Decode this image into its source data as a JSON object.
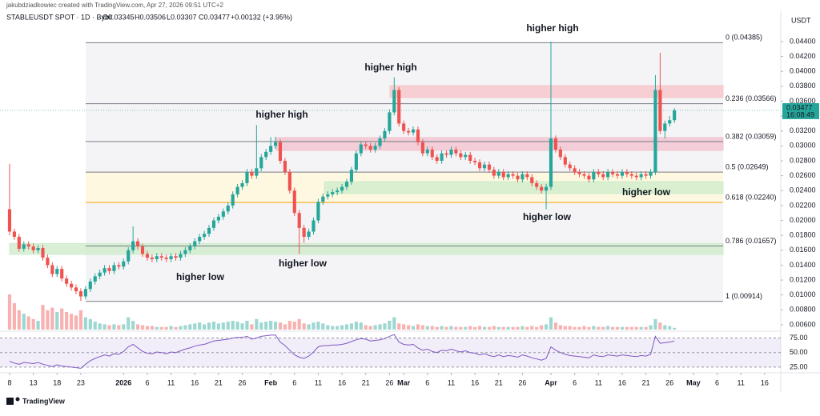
{
  "header": "jakubdziadkowiec created with TradingView.com, Apr 27, 2026 09:51 UTC+2",
  "symbol": "STABLEUSDT SPOT · 1D · Bybit",
  "ohlc": [
    "O0.03345",
    "H0.03506",
    "L0.03307",
    "C0.03477",
    "+0.00132 (+3.95%)"
  ],
  "currency": "USDT",
  "last_price": "0.03477",
  "countdown": "16:08:49",
  "logo": "TradingView",
  "chart_data": {
    "type": "candlestick",
    "up_color": "#26a69a",
    "down_color": "#ef5350",
    "xlim": [
      -2.02,
      162.4
    ],
    "xticks": [
      {
        "value": 0,
        "label": "8"
      },
      {
        "value": 5,
        "label": "13"
      },
      {
        "value": 10,
        "label": "18"
      },
      {
        "value": 15,
        "label": "23"
      },
      {
        "value": 24,
        "label": "2026"
      },
      {
        "value": 29,
        "label": "6"
      },
      {
        "value": 34,
        "label": "11"
      },
      {
        "value": 39,
        "label": "16"
      },
      {
        "value": 44,
        "label": "21"
      },
      {
        "value": 49,
        "label": "26"
      },
      {
        "value": 55,
        "label": "Feb"
      },
      {
        "value": 60,
        "label": "6"
      },
      {
        "value": 65,
        "label": "11"
      },
      {
        "value": 70,
        "label": "16"
      },
      {
        "value": 75,
        "label": "21"
      },
      {
        "value": 80,
        "label": "26"
      },
      {
        "value": 83,
        "label": "Mar"
      },
      {
        "value": 88,
        "label": "6"
      },
      {
        "value": 93,
        "label": "11"
      },
      {
        "value": 98,
        "label": "16"
      },
      {
        "value": 103,
        "label": "21"
      },
      {
        "value": 108,
        "label": "26"
      },
      {
        "value": 114,
        "label": "Apr"
      },
      {
        "value": 119,
        "label": "6"
      },
      {
        "value": 124,
        "label": "11"
      },
      {
        "value": 129,
        "label": "16"
      },
      {
        "value": 134,
        "label": "21"
      },
      {
        "value": 139,
        "label": "26"
      },
      {
        "value": 144,
        "label": "May"
      },
      {
        "value": 149,
        "label": "6"
      },
      {
        "value": 154,
        "label": "11"
      },
      {
        "value": 159,
        "label": "16"
      }
    ],
    "ylim": [
      0.00535,
      0.04786
    ],
    "yticks": [
      {
        "value": 0.006,
        "label": "0.00600"
      },
      {
        "value": 0.008,
        "label": "0.00800"
      },
      {
        "value": 0.01,
        "label": "0.01000"
      },
      {
        "value": 0.012,
        "label": "0.01200"
      },
      {
        "value": 0.014,
        "label": "0.01400"
      },
      {
        "value": 0.016,
        "label": "0.01600"
      },
      {
        "value": 0.018,
        "label": "0.01800"
      },
      {
        "value": 0.02,
        "label": "0.02000"
      },
      {
        "value": 0.022,
        "label": "0.02200"
      },
      {
        "value": 0.024,
        "label": "0.02400"
      },
      {
        "value": 0.026,
        "label": "0.02600"
      },
      {
        "value": 0.028,
        "label": "0.02800"
      },
      {
        "value": 0.03,
        "label": "0.03000"
      },
      {
        "value": 0.032,
        "label": "0.03200"
      },
      {
        "value": 0.034,
        "label": "0.03400"
      },
      {
        "value": 0.036,
        "label": "0.03600"
      },
      {
        "value": 0.038,
        "label": "0.03800"
      },
      {
        "value": 0.04,
        "label": "0.04000"
      },
      {
        "value": 0.042,
        "label": "0.04200"
      },
      {
        "value": 0.044,
        "label": "0.04400"
      }
    ],
    "open": [
      0.0215,
      0.0185,
      0.0178,
      0.0162,
      0.0168,
      0.0165,
      0.016,
      0.0163,
      0.015,
      0.014,
      0.0128,
      0.0135,
      0.0122,
      0.0115,
      0.011,
      0.0105,
      0.0098,
      0.0108,
      0.0118,
      0.0125,
      0.013,
      0.0136,
      0.0132,
      0.014,
      0.0138,
      0.0145,
      0.016,
      0.0172,
      0.0165,
      0.0155,
      0.015,
      0.0148,
      0.0152,
      0.015,
      0.0148,
      0.0152,
      0.015,
      0.0155,
      0.016,
      0.0165,
      0.0172,
      0.0178,
      0.0182,
      0.019,
      0.02,
      0.0205,
      0.0212,
      0.022,
      0.0235,
      0.0245,
      0.025,
      0.0265,
      0.026,
      0.027,
      0.0285,
      0.0292,
      0.03,
      0.0305,
      0.028,
      0.0265,
      0.024,
      0.021,
      0.019,
      0.0178,
      0.0185,
      0.02,
      0.0225,
      0.0232,
      0.0235,
      0.0238,
      0.024,
      0.0245,
      0.0252,
      0.0268,
      0.029,
      0.0302,
      0.03,
      0.0295,
      0.03,
      0.031,
      0.032,
      0.0345,
      0.0375,
      0.033,
      0.032,
      0.0318,
      0.0322,
      0.0305,
      0.029,
      0.0295,
      0.0285,
      0.028,
      0.029,
      0.0288,
      0.0295,
      0.029,
      0.0285,
      0.0288,
      0.028,
      0.0278,
      0.027,
      0.0275,
      0.0268,
      0.026,
      0.0265,
      0.0258,
      0.0262,
      0.026,
      0.0255,
      0.0262,
      0.0258,
      0.025,
      0.0245,
      0.024,
      0.0245,
      0.031,
      0.0295,
      0.0285,
      0.0275,
      0.027,
      0.0265,
      0.0262,
      0.026,
      0.0255,
      0.0265,
      0.0262,
      0.0258,
      0.0265,
      0.0262,
      0.026,
      0.0265,
      0.0262,
      0.026,
      0.0258,
      0.0262,
      0.026,
      0.0265,
      0.0375,
      0.032,
      0.033,
      0.03345
    ],
    "high": [
      0.0276,
      0.0189,
      0.0182,
      0.0172,
      0.0172,
      0.0169,
      0.0167,
      0.0167,
      0.0154,
      0.0144,
      0.0139,
      0.0139,
      0.0126,
      0.0119,
      0.0114,
      0.0109,
      0.0112,
      0.0122,
      0.0129,
      0.0134,
      0.014,
      0.014,
      0.0144,
      0.0144,
      0.0149,
      0.0164,
      0.0192,
      0.0176,
      0.0169,
      0.0159,
      0.0154,
      0.0156,
      0.0156,
      0.0154,
      0.0156,
      0.0156,
      0.0159,
      0.0164,
      0.0169,
      0.0176,
      0.0182,
      0.0186,
      0.0194,
      0.0204,
      0.0209,
      0.0216,
      0.0224,
      0.0239,
      0.0249,
      0.0254,
      0.0269,
      0.0269,
      0.0328,
      0.0289,
      0.0296,
      0.0312,
      0.0312,
      0.0309,
      0.0284,
      0.0269,
      0.0244,
      0.0214,
      0.0194,
      0.0189,
      0.0204,
      0.0229,
      0.0236,
      0.0239,
      0.0242,
      0.0244,
      0.0249,
      0.0256,
      0.0272,
      0.0294,
      0.0306,
      0.0306,
      0.0304,
      0.0304,
      0.0314,
      0.0324,
      0.0349,
      0.0392,
      0.0379,
      0.0334,
      0.0324,
      0.0326,
      0.0326,
      0.0309,
      0.0299,
      0.0299,
      0.0289,
      0.0294,
      0.0294,
      0.0299,
      0.0299,
      0.0294,
      0.0292,
      0.0292,
      0.0284,
      0.0282,
      0.0279,
      0.0279,
      0.0272,
      0.0269,
      0.0269,
      0.0266,
      0.0266,
      0.0264,
      0.0266,
      0.0266,
      0.0262,
      0.0254,
      0.0249,
      0.0249,
      0.044,
      0.0314,
      0.0299,
      0.0289,
      0.0279,
      0.0274,
      0.0269,
      0.0266,
      0.0264,
      0.0269,
      0.0269,
      0.0266,
      0.0269,
      0.0269,
      0.0266,
      0.0269,
      0.0269,
      0.0266,
      0.0264,
      0.0266,
      0.0266,
      0.0269,
      0.0395,
      0.0425,
      0.0334,
      0.034,
      0.03506
    ],
    "low": [
      0.018,
      0.0174,
      0.0158,
      0.0158,
      0.0161,
      0.0156,
      0.0156,
      0.0146,
      0.0136,
      0.0124,
      0.0124,
      0.0118,
      0.0111,
      0.0106,
      0.0101,
      0.0092,
      0.0094,
      0.0104,
      0.0114,
      0.0121,
      0.0126,
      0.0128,
      0.0128,
      0.0134,
      0.0134,
      0.0141,
      0.0156,
      0.0161,
      0.0151,
      0.0146,
      0.0144,
      0.0144,
      0.0146,
      0.0144,
      0.0144,
      0.0146,
      0.0146,
      0.0151,
      0.0156,
      0.0161,
      0.0168,
      0.0174,
      0.0178,
      0.0186,
      0.0196,
      0.0201,
      0.0208,
      0.0216,
      0.0231,
      0.0241,
      0.0246,
      0.0256,
      0.0256,
      0.0266,
      0.0281,
      0.0288,
      0.0296,
      0.0276,
      0.0261,
      0.0236,
      0.0206,
      0.0155,
      0.017,
      0.0174,
      0.0181,
      0.0196,
      0.0221,
      0.0228,
      0.0231,
      0.0234,
      0.0236,
      0.0241,
      0.0248,
      0.0264,
      0.0286,
      0.0296,
      0.0291,
      0.0291,
      0.0296,
      0.0306,
      0.0316,
      0.0341,
      0.0326,
      0.0316,
      0.0314,
      0.0314,
      0.0301,
      0.0286,
      0.0286,
      0.0281,
      0.0276,
      0.0276,
      0.0284,
      0.0284,
      0.0286,
      0.0281,
      0.0281,
      0.0276,
      0.0274,
      0.0266,
      0.0266,
      0.0264,
      0.0256,
      0.0256,
      0.0254,
      0.0254,
      0.0256,
      0.0251,
      0.0251,
      0.0254,
      0.0246,
      0.0241,
      0.0236,
      0.0215,
      0.0241,
      0.0291,
      0.0281,
      0.0271,
      0.0266,
      0.0261,
      0.0258,
      0.0256,
      0.0251,
      0.0251,
      0.0258,
      0.0254,
      0.0254,
      0.0258,
      0.0256,
      0.0256,
      0.0258,
      0.0256,
      0.0254,
      0.0254,
      0.0256,
      0.0256,
      0.0261,
      0.0316,
      0.031,
      0.0326,
      0.03307
    ],
    "close": [
      0.0185,
      0.0178,
      0.0162,
      0.0168,
      0.0165,
      0.016,
      0.0163,
      0.015,
      0.014,
      0.0128,
      0.0135,
      0.0122,
      0.0115,
      0.011,
      0.0105,
      0.0098,
      0.0108,
      0.0118,
      0.0125,
      0.013,
      0.0136,
      0.0132,
      0.014,
      0.0138,
      0.0145,
      0.016,
      0.0172,
      0.0165,
      0.0155,
      0.015,
      0.0148,
      0.0152,
      0.015,
      0.0148,
      0.0152,
      0.015,
      0.0155,
      0.016,
      0.0165,
      0.0172,
      0.0178,
      0.0182,
      0.019,
      0.02,
      0.0205,
      0.0212,
      0.022,
      0.0235,
      0.0245,
      0.025,
      0.0265,
      0.026,
      0.027,
      0.0285,
      0.0292,
      0.03,
      0.0305,
      0.028,
      0.0265,
      0.024,
      0.021,
      0.019,
      0.0178,
      0.0185,
      0.02,
      0.0225,
      0.0232,
      0.0235,
      0.0238,
      0.024,
      0.0245,
      0.0252,
      0.0268,
      0.029,
      0.0302,
      0.03,
      0.0295,
      0.03,
      0.031,
      0.032,
      0.0345,
      0.0375,
      0.033,
      0.032,
      0.0318,
      0.0322,
      0.0305,
      0.029,
      0.0295,
      0.0285,
      0.028,
      0.029,
      0.0288,
      0.0295,
      0.029,
      0.0285,
      0.0288,
      0.028,
      0.0278,
      0.027,
      0.0275,
      0.0268,
      0.026,
      0.0265,
      0.0258,
      0.0262,
      0.026,
      0.0255,
      0.0262,
      0.0258,
      0.025,
      0.0245,
      0.024,
      0.0245,
      0.031,
      0.0295,
      0.0285,
      0.0275,
      0.027,
      0.0265,
      0.0262,
      0.026,
      0.0255,
      0.0265,
      0.0262,
      0.0258,
      0.0265,
      0.0262,
      0.026,
      0.0265,
      0.0262,
      0.026,
      0.0258,
      0.0262,
      0.026,
      0.0265,
      0.0375,
      0.032,
      0.033,
      0.03345,
      0.03477
    ],
    "volume": [
      40,
      30,
      22,
      18,
      15,
      12,
      10,
      28,
      22,
      25,
      20,
      24,
      20,
      18,
      16,
      22,
      14,
      12,
      9,
      7,
      6,
      5,
      6,
      5,
      6,
      14,
      10,
      6,
      5,
      4,
      4,
      3,
      3,
      3,
      4,
      3,
      4,
      5,
      6,
      7,
      8,
      6,
      8,
      9,
      7,
      8,
      9,
      10,
      9,
      7,
      10,
      6,
      12,
      8,
      9,
      10,
      9,
      8,
      6,
      10,
      9,
      12,
      7,
      6,
      8,
      9,
      7,
      5,
      4,
      4,
      5,
      6,
      7,
      9,
      8,
      5,
      4,
      5,
      6,
      7,
      10,
      14,
      7,
      6,
      5,
      4,
      6,
      5,
      4,
      4,
      3,
      4,
      3,
      4,
      3,
      3,
      3,
      4,
      3,
      4,
      3,
      3,
      4,
      3,
      3,
      3,
      3,
      3,
      4,
      3,
      4,
      3,
      5,
      6,
      14,
      8,
      5,
      4,
      4,
      3,
      3,
      4,
      3,
      4,
      3,
      3,
      4,
      3,
      3,
      3,
      3,
      3,
      3,
      3,
      3,
      5,
      12,
      8,
      5,
      4,
      2
    ],
    "rsi": [
      35,
      32,
      30,
      33,
      32,
      31,
      33,
      30,
      28,
      26,
      29,
      27,
      26,
      25,
      24,
      23,
      30,
      36,
      40,
      43,
      46,
      44,
      48,
      47,
      52,
      60,
      64,
      58,
      52,
      49,
      48,
      51,
      50,
      48,
      51,
      50,
      53,
      56,
      58,
      61,
      63,
      64,
      67,
      70,
      71,
      72,
      73,
      75,
      76,
      76,
      78,
      73,
      75,
      78,
      79,
      80,
      80,
      68,
      62,
      54,
      46,
      42,
      40,
      44,
      51,
      60,
      62,
      62,
      63,
      63,
      64,
      66,
      69,
      72,
      74,
      73,
      70,
      71,
      72,
      74,
      78,
      81,
      68,
      64,
      63,
      64,
      58,
      54,
      56,
      52,
      50,
      54,
      53,
      56,
      53,
      51,
      53,
      50,
      49,
      46,
      48,
      45,
      43,
      46,
      43,
      45,
      44,
      42,
      46,
      44,
      41,
      39,
      37,
      40,
      60,
      54,
      50,
      47,
      45,
      44,
      43,
      42,
      41,
      46,
      44,
      43,
      46,
      45,
      44,
      46,
      45,
      44,
      43,
      45,
      44,
      47,
      78,
      66,
      67,
      68,
      70
    ],
    "rsi_color": "#7e57c2",
    "rsi_ylim": [
      18,
      84
    ],
    "rsi_yticks": [
      {
        "value": 75,
        "label": "75.00"
      },
      {
        "value": 50,
        "label": "50.00"
      },
      {
        "value": 25,
        "label": "25.00"
      }
    ],
    "fib_levels": [
      {
        "value": 0.04385,
        "label": "0 (0.04385)",
        "color": "#787b86"
      },
      {
        "value": 0.03566,
        "label": "0.236 (0.03566)",
        "color": "#787b86"
      },
      {
        "value": 0.03059,
        "label": "0.382 (0.03059)",
        "color": "#787b86"
      },
      {
        "value": 0.02649,
        "label": "0.5 (0.02649)",
        "color": "#787b86"
      },
      {
        "value": 0.0224,
        "label": "0.618 (0.02240)",
        "color": "#f0a30a"
      },
      {
        "value": 0.01657,
        "label": "0.786 (0.01657)",
        "color": "#787b86"
      },
      {
        "value": 0.00914,
        "label": "1 (0.00914)",
        "color": "#787b86"
      }
    ],
    "zones": [
      {
        "from": 0.03649,
        "to": 0.0381,
        "color": "#f7c6c9"
      },
      {
        "from": 0.0294,
        "to": 0.03112,
        "color": "#f3c3cf"
      },
      {
        "from": 0.0236,
        "to": 0.02521,
        "color": "#cfeccc"
      },
      {
        "from": 0.01544,
        "to": 0.0169,
        "color": "#cfeccc"
      }
    ],
    "annotations": [
      "higher high",
      "higher high",
      "higher high",
      "higher low",
      "higher low",
      "higher low",
      "higher low"
    ]
  }
}
